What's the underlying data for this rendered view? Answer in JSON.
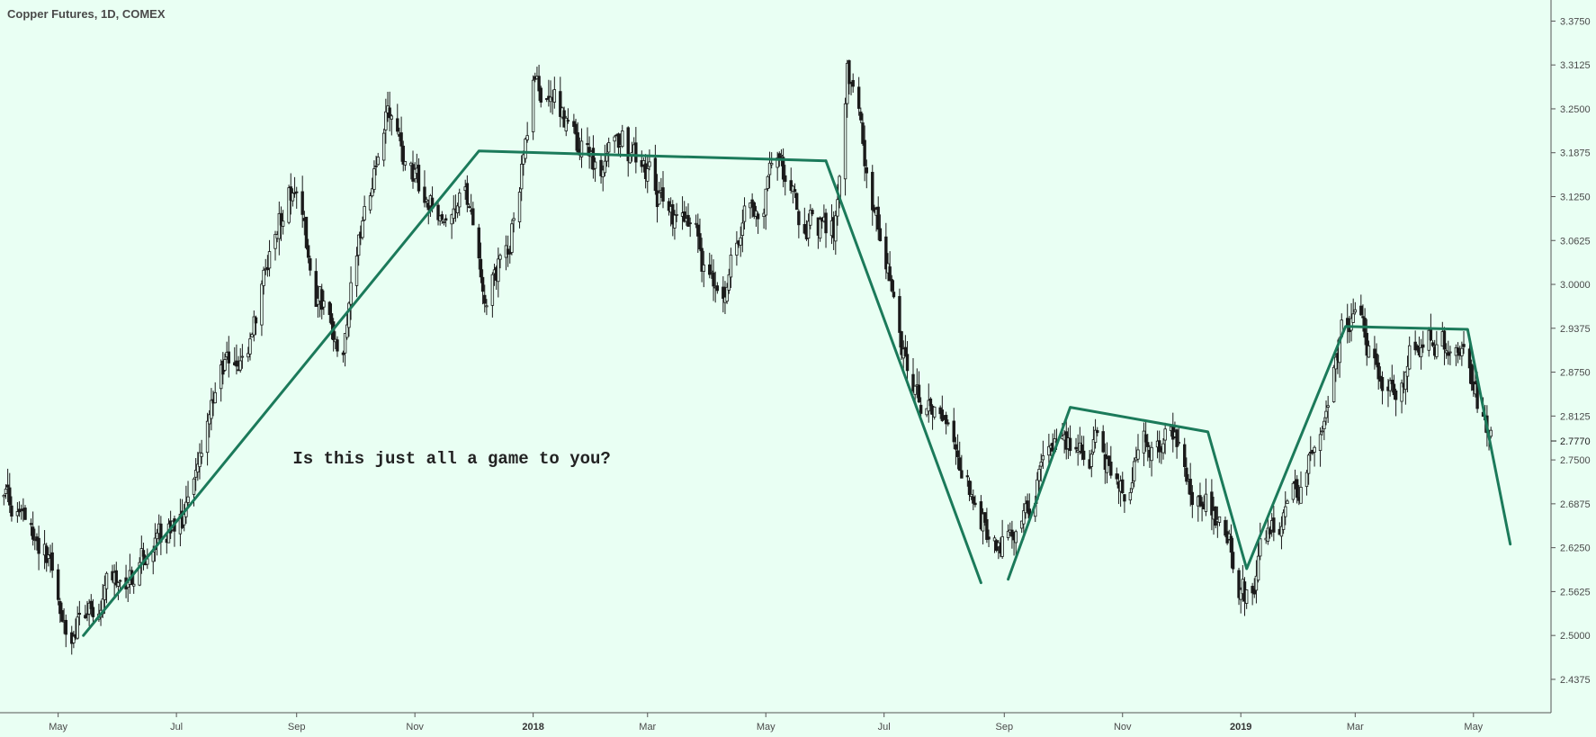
{
  "chart_data": {
    "type": "candlestick",
    "title": "Copper Futures, 1D, COMEX",
    "y_axis": {
      "position": "right",
      "ylim": [
        2.39,
        3.405
      ],
      "ticks": [
        "3.3750",
        "3.3125",
        "3.2500",
        "3.1875",
        "3.1250",
        "3.0625",
        "3.0000",
        "2.9375",
        "2.8750",
        "2.8125",
        "2.7500",
        "2.6875",
        "2.6250",
        "2.5625",
        "2.5000",
        "2.4375"
      ],
      "last_price": "2.7770"
    },
    "x_axis": {
      "range": [
        "2017-04-01",
        "2019-06-10"
      ],
      "ticks": [
        {
          "date": "2017-05-01",
          "label": "May",
          "bold": false
        },
        {
          "date": "2017-07-01",
          "label": "Jul",
          "bold": false
        },
        {
          "date": "2017-09-01",
          "label": "Sep",
          "bold": false
        },
        {
          "date": "2017-11-01",
          "label": "Nov",
          "bold": false
        },
        {
          "date": "2018-01-01",
          "label": "2018",
          "bold": true
        },
        {
          "date": "2018-03-01",
          "label": "Mar",
          "bold": false
        },
        {
          "date": "2018-05-01",
          "label": "May",
          "bold": false
        },
        {
          "date": "2018-07-01",
          "label": "Jul",
          "bold": false
        },
        {
          "date": "2018-09-01",
          "label": "Sep",
          "bold": false
        },
        {
          "date": "2018-11-01",
          "label": "Nov",
          "bold": false
        },
        {
          "date": "2019-01-01",
          "label": "2019",
          "bold": true
        },
        {
          "date": "2019-03-01",
          "label": "Mar",
          "bold": false
        },
        {
          "date": "2019-05-01",
          "label": "May",
          "bold": false
        }
      ]
    },
    "price_path": [
      [
        "2017-04-01",
        2.7
      ],
      [
        "2017-04-15",
        2.67
      ],
      [
        "2017-04-25",
        2.62
      ],
      [
        "2017-05-08",
        2.52
      ],
      [
        "2017-05-20",
        2.55
      ],
      [
        "2017-06-05",
        2.58
      ],
      [
        "2017-06-25",
        2.63
      ],
      [
        "2017-07-10",
        2.7
      ],
      [
        "2017-07-25",
        2.87
      ],
      [
        "2017-08-08",
        2.93
      ],
      [
        "2017-08-22",
        3.07
      ],
      [
        "2017-08-30",
        3.14
      ],
      [
        "2017-09-10",
        2.98
      ],
      [
        "2017-09-25",
        2.93
      ],
      [
        "2017-10-05",
        3.07
      ],
      [
        "2017-10-18",
        3.23
      ],
      [
        "2017-10-30",
        3.16
      ],
      [
        "2017-11-15",
        3.08
      ],
      [
        "2017-11-28",
        3.12
      ],
      [
        "2017-12-08",
        2.96
      ],
      [
        "2017-12-20",
        3.07
      ],
      [
        "2018-01-02",
        3.3
      ],
      [
        "2018-01-20",
        3.22
      ],
      [
        "2018-02-05",
        3.17
      ],
      [
        "2018-02-12",
        3.23
      ],
      [
        "2018-02-22",
        3.17
      ],
      [
        "2018-03-10",
        3.1
      ],
      [
        "2018-03-25",
        3.06
      ],
      [
        "2018-04-08",
        2.96
      ],
      [
        "2018-04-20",
        3.12
      ],
      [
        "2018-05-05",
        3.15
      ],
      [
        "2018-05-20",
        3.08
      ],
      [
        "2018-06-05",
        3.07
      ],
      [
        "2018-06-12",
        3.3
      ],
      [
        "2018-06-22",
        3.17
      ],
      [
        "2018-07-05",
        3.0
      ],
      [
        "2018-07-18",
        2.82
      ],
      [
        "2018-08-01",
        2.77
      ],
      [
        "2018-08-15",
        2.72
      ],
      [
        "2018-08-28",
        2.62
      ],
      [
        "2018-09-12",
        2.66
      ],
      [
        "2018-09-25",
        2.8
      ],
      [
        "2018-10-15",
        2.77
      ],
      [
        "2018-10-30",
        2.72
      ],
      [
        "2018-11-15",
        2.78
      ],
      [
        "2018-12-01",
        2.77
      ],
      [
        "2018-12-12",
        2.7
      ],
      [
        "2018-12-25",
        2.66
      ],
      [
        "2019-01-03",
        2.57
      ],
      [
        "2019-01-15",
        2.63
      ],
      [
        "2019-02-01",
        2.72
      ],
      [
        "2019-02-22",
        2.93
      ],
      [
        "2019-03-05",
        2.93
      ],
      [
        "2019-03-20",
        2.86
      ],
      [
        "2019-04-05",
        2.93
      ],
      [
        "2019-04-20",
        2.92
      ],
      [
        "2019-05-01",
        2.85
      ],
      [
        "2019-05-10",
        2.77
      ]
    ],
    "trend_lines": [
      {
        "color": "#1b7a5a",
        "points": [
          [
            "2017-05-14",
            2.5
          ],
          [
            "2017-12-04",
            3.19
          ],
          [
            "2018-06-01",
            3.176
          ]
        ]
      },
      {
        "color": "#1b7a5a",
        "points": [
          [
            "2018-06-01",
            3.176
          ],
          [
            "2018-08-20",
            2.575
          ]
        ]
      },
      {
        "color": "#1b7a5a",
        "points": [
          [
            "2018-09-03",
            2.58
          ],
          [
            "2018-10-05",
            2.825
          ],
          [
            "2018-12-15",
            2.79
          ],
          [
            "2019-01-04",
            2.595
          ],
          [
            "2019-02-24",
            2.94
          ],
          [
            "2019-04-28",
            2.936
          ],
          [
            "2019-05-20",
            2.63
          ]
        ]
      }
    ],
    "annotation": {
      "text": "Is this just all a game to you?",
      "date": "2017-11-20",
      "value": 2.745
    },
    "colors": {
      "background": "#e9fff3",
      "candle": "#1a1a1a",
      "trend": "#1b7a5a",
      "axis": "#555555",
      "text": "#4a4a4a"
    }
  }
}
